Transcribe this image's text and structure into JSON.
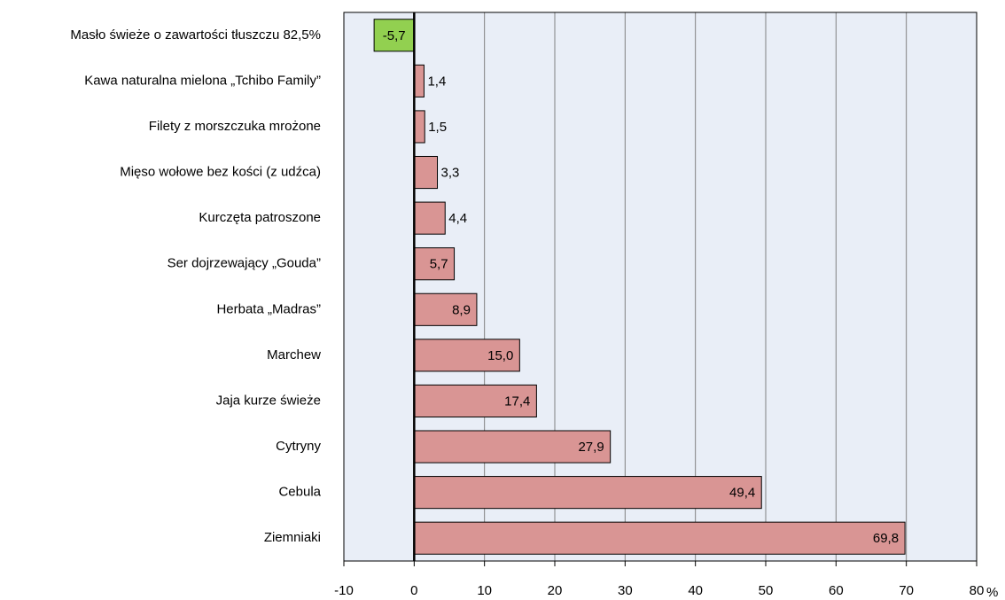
{
  "chart_data": {
    "type": "barh",
    "categories": [
      "Masło świeże o zawartości tłuszczu 82,5%",
      "Kawa naturalna mielona „Tchibo Family”",
      "Filety z morszczuka mrożone",
      "Mięso wołowe bez kości (z udźca)",
      "Kurczęta patroszone",
      "Ser dojrzewający „Gouda”",
      "Herbata „Madras”",
      "Marchew",
      "Jaja kurze świeże",
      "Cytryny",
      "Cebula",
      "Ziemniaki"
    ],
    "values": [
      -5.7,
      1.4,
      1.5,
      3.3,
      4.4,
      5.7,
      8.9,
      15.0,
      17.4,
      27.9,
      49.4,
      69.8
    ],
    "value_labels": [
      "-5,7",
      "1,4",
      "1,5",
      "3,3",
      "4,4",
      "5,7",
      "8,9",
      "15,0",
      "17,4",
      "27,9",
      "49,4",
      "69,8"
    ],
    "colors": [
      "#92d050",
      "#d99594",
      "#d99594",
      "#d99594",
      "#d99594",
      "#d99594",
      "#d99594",
      "#d99594",
      "#d99594",
      "#d99594",
      "#d99594",
      "#d99594"
    ],
    "xlabel": "%",
    "xlim": [
      -10,
      80
    ],
    "xticks": [
      -10,
      0,
      10,
      20,
      30,
      40,
      50,
      60,
      70,
      80
    ],
    "grid": true
  }
}
